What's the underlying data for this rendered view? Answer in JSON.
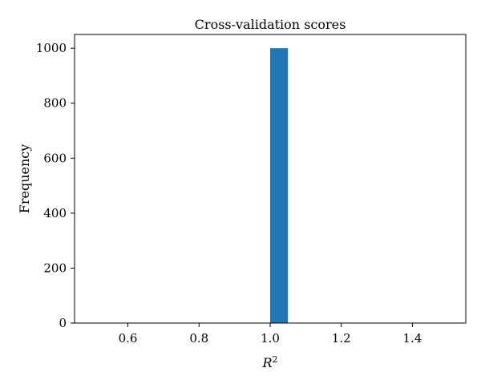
{
  "chart_data": {
    "type": "bar",
    "title": "Cross-validation scores",
    "xlabel": "R",
    "xlabel_superscript": "2",
    "ylabel": "Frequency",
    "xlim": [
      0.45,
      1.55
    ],
    "ylim": [
      0,
      1050
    ],
    "xticks": [
      {
        "value": 0.6,
        "label": "0.6"
      },
      {
        "value": 0.8,
        "label": "0.8"
      },
      {
        "value": 1.0,
        "label": "1.0"
      },
      {
        "value": 1.2,
        "label": "1.2"
      },
      {
        "value": 1.4,
        "label": "1.4"
      }
    ],
    "yticks": [
      {
        "value": 0,
        "label": "0"
      },
      {
        "value": 200,
        "label": "200"
      },
      {
        "value": 400,
        "label": "400"
      },
      {
        "value": 600,
        "label": "600"
      },
      {
        "value": 800,
        "label": "800"
      },
      {
        "value": 1000,
        "label": "1000"
      }
    ],
    "bins": [
      {
        "start": 1.0,
        "end": 1.05,
        "value": 1000
      }
    ],
    "bar_color": "#2176b4",
    "grid": false,
    "legend": false
  }
}
